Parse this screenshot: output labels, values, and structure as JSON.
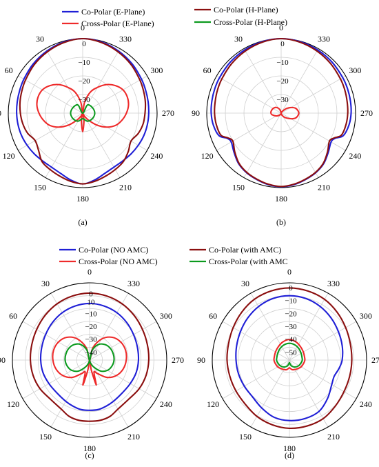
{
  "figure_colors": {
    "co_polar_e": "#1f1fd6",
    "cross_polar_e": "#ee2a2a",
    "co_polar_h": "#8b0f0f",
    "cross_polar_h": "#0b9a1e"
  },
  "legends": [
    {
      "entries": [
        {
          "label": "Co-Polar (E-Plane)",
          "color": "#1f1fd6"
        },
        {
          "label": "Co-Polar (H-Plane)",
          "color": "#8b0f0f"
        },
        {
          "label": "Cross-Polar (E-Plane)",
          "color": "#ee2a2a"
        },
        {
          "label": "Cross-Polar (H-Plane)",
          "color": "#0b9a1e"
        }
      ]
    },
    {
      "entries": [
        {
          "label": "Co-Polar (NO AMC)",
          "color": "#1f1fd6"
        },
        {
          "label": "Co-Polar (with AMC)",
          "color": "#8b0f0f"
        },
        {
          "label": "Cross-Polar (NO AMC)",
          "color": "#ee2a2a"
        },
        {
          "label": "Cross-Polar (with AMC",
          "color": "#0b9a1e"
        }
      ]
    }
  ],
  "chart_data": [
    {
      "type": "polar",
      "caption": "(a)",
      "angle_labels": [
        "0",
        "330",
        "300",
        "270",
        "240",
        "210",
        "180",
        "150",
        "120",
        "90",
        "60",
        "30"
      ],
      "radial_labels": [
        "0",
        "−10",
        "−20",
        "−30"
      ],
      "rlim": [
        -40,
        0
      ],
      "series": [
        {
          "name": "Co-Polar (E-Plane)",
          "color": "#1f1fd6",
          "theta": [
            0,
            15,
            30,
            45,
            60,
            70,
            80,
            90,
            100,
            110,
            120,
            130,
            140,
            150,
            160,
            170,
            180,
            190,
            200,
            210,
            220,
            230,
            240,
            250,
            260,
            270,
            280,
            290,
            300,
            315,
            330,
            345
          ],
          "r_db": [
            0,
            -0.5,
            -1.5,
            -2.5,
            -3.5,
            -4,
            -4.3,
            -4.5,
            -4.7,
            -5,
            -5.5,
            -6,
            -6.5,
            -6.5,
            -5.5,
            -3.5,
            -2,
            -3.5,
            -5.5,
            -6.5,
            -6.5,
            -6,
            -5.5,
            -5,
            -4.7,
            -4.5,
            -4.3,
            -4,
            -3.5,
            -2.5,
            -1.5,
            -0.5
          ]
        },
        {
          "name": "Co-Polar (H-Plane)",
          "color": "#8b0f0f",
          "theta": [
            0,
            15,
            30,
            45,
            60,
            70,
            80,
            90,
            100,
            110,
            120,
            130,
            140,
            150,
            160,
            170,
            180,
            190,
            200,
            210,
            220,
            230,
            240,
            250,
            260,
            270,
            280,
            290,
            300,
            315,
            330,
            345
          ],
          "r_db": [
            0,
            -0.8,
            -2,
            -3.2,
            -4.5,
            -5.2,
            -5.8,
            -6.5,
            -7.3,
            -8.5,
            -10.5,
            -9,
            -6,
            -5,
            -4,
            -2.8,
            -2,
            -2.8,
            -4,
            -5,
            -6,
            -8,
            -10,
            -8.2,
            -7,
            -6.5,
            -5.8,
            -5.2,
            -4.5,
            -3.2,
            -2,
            -0.8
          ]
        },
        {
          "name": "Cross-Polar (E-Plane)",
          "color": "#ee2a2a",
          "theta": [
            0,
            10,
            20,
            30,
            40,
            50,
            60,
            70,
            80,
            90,
            100,
            110,
            120,
            130,
            140,
            150,
            160,
            170,
            180,
            190,
            200,
            210,
            220,
            230,
            240,
            250,
            260,
            270,
            280,
            290,
            300,
            310,
            320,
            330,
            340,
            350
          ],
          "r_db": [
            -40,
            -34,
            -28,
            -24,
            -20,
            -17,
            -15,
            -14.5,
            -15,
            -16.5,
            -18.5,
            -21,
            -25,
            -30,
            -35,
            -38,
            -40,
            -36,
            -30,
            -36,
            -40,
            -38,
            -35,
            -30,
            -25,
            -21,
            -18.5,
            -16.5,
            -15,
            -14.5,
            -15,
            -17,
            -20,
            -24,
            -28,
            -34
          ]
        },
        {
          "name": "Cross-Polar (H-Plane)",
          "color": "#0b9a1e",
          "theta": [
            0,
            30,
            60,
            90,
            120,
            150,
            180,
            210,
            240,
            270,
            300,
            330
          ],
          "r_db": [
            -40,
            -35,
            -34,
            -33.5,
            -34,
            -35,
            -37,
            -35,
            -34,
            -33.5,
            -34,
            -35
          ]
        }
      ]
    },
    {
      "type": "polar",
      "caption": "(b)",
      "angle_labels": [
        "0",
        "330",
        "300",
        "270",
        "240",
        "210",
        "180",
        "150",
        "120",
        "90",
        "60",
        "30"
      ],
      "radial_labels": [
        "0",
        "−10",
        "−20",
        "−30"
      ],
      "rlim": [
        -40,
        0
      ],
      "series": [
        {
          "name": "Co-Polar (E-Plane)",
          "color": "#1f1fd6",
          "theta": [
            0,
            15,
            30,
            45,
            60,
            70,
            80,
            90,
            100,
            110,
            115,
            120,
            130,
            140,
            150,
            160,
            170,
            180,
            190,
            200,
            210,
            220,
            230,
            240,
            245,
            250,
            260,
            270,
            280,
            290,
            300,
            315,
            330,
            345
          ],
          "r_db": [
            0,
            -0.3,
            -0.8,
            -1.3,
            -1.8,
            -2,
            -2.2,
            -2.4,
            -3,
            -4.5,
            -8,
            -9,
            -7,
            -4.5,
            -3,
            -2,
            -1,
            -0.5,
            -1,
            -2,
            -3,
            -4.5,
            -7,
            -9,
            -8,
            -4.5,
            -3,
            -2.4,
            -2.2,
            -2,
            -1.8,
            -1.3,
            -0.8,
            -0.3
          ]
        },
        {
          "name": "Co-Polar (H-Plane)",
          "color": "#8b0f0f",
          "theta": [
            0,
            15,
            30,
            45,
            60,
            70,
            80,
            90,
            100,
            110,
            115,
            120,
            130,
            140,
            150,
            160,
            170,
            180,
            190,
            200,
            210,
            220,
            230,
            240,
            245,
            250,
            260,
            270,
            280,
            290,
            300,
            315,
            330,
            345
          ],
          "r_db": [
            0,
            -0.6,
            -1.5,
            -2.4,
            -3.2,
            -3.6,
            -4,
            -4.2,
            -4.6,
            -5.5,
            -8.5,
            -10,
            -7.5,
            -4.8,
            -3.2,
            -2.2,
            -1.2,
            -0.6,
            -1.2,
            -2.2,
            -3.2,
            -4.8,
            -7.5,
            -10,
            -8.5,
            -5.5,
            -4.6,
            -4.2,
            -4,
            -3.6,
            -3.2,
            -2.4,
            -1.5,
            -0.6
          ]
        },
        {
          "name": "Cross-Polar (E-Plane)",
          "color": "#ee2a2a",
          "theta": [
            0,
            20,
            40,
            60,
            80,
            90,
            100,
            120,
            140,
            160,
            180,
            200,
            220,
            240,
            250,
            260,
            270,
            280,
            290,
            300,
            310,
            320,
            340
          ],
          "r_db": [
            -40,
            -38,
            -36,
            -35,
            -34.5,
            -34.5,
            -35,
            -37,
            -38.5,
            -39.5,
            -40,
            -39,
            -37,
            -34,
            -32,
            -31,
            -30.5,
            -31,
            -32,
            -34,
            -36,
            -38,
            -39.5
          ]
        }
      ]
    },
    {
      "type": "polar",
      "caption": "(c)",
      "angle_labels": [
        "0",
        "330",
        "300",
        "270",
        "240",
        "210",
        "180",
        "150",
        "120",
        "90",
        "60",
        "30"
      ],
      "radial_labels": [
        "0",
        "10",
        "−10",
        "−20",
        "−30",
        "−40"
      ],
      "rlim": [
        -50,
        10
      ],
      "series": [
        {
          "name": "Co-Polar (NO AMC)",
          "color": "#1f1fd6",
          "theta": [
            0,
            15,
            30,
            45,
            60,
            75,
            90,
            105,
            120,
            135,
            150,
            160,
            170,
            180,
            190,
            200,
            210,
            225,
            240,
            255,
            270,
            285,
            300,
            315,
            330,
            345
          ],
          "r_db": [
            -6,
            -6.5,
            -7.5,
            -9,
            -10.5,
            -11.5,
            -12,
            -12.5,
            -13.5,
            -14,
            -13,
            -12,
            -11,
            -11,
            -11,
            -12,
            -13,
            -14,
            -13.5,
            -12.5,
            -12,
            -11.5,
            -10.5,
            -9,
            -7.5,
            -6.5
          ]
        },
        {
          "name": "Co-Polar (with AMC)",
          "color": "#8b0f0f",
          "theta": [
            0,
            15,
            30,
            45,
            60,
            75,
            90,
            105,
            120,
            135,
            150,
            160,
            170,
            180,
            190,
            200,
            210,
            225,
            240,
            255,
            270,
            285,
            300,
            315,
            330,
            345
          ],
          "r_db": [
            2,
            1.5,
            0.5,
            -1,
            -2.5,
            -3.5,
            -4,
            -4.5,
            -5.5,
            -7,
            -6,
            -3.5,
            -2.5,
            -2.5,
            -2.5,
            -3.5,
            -6,
            -7,
            -5.5,
            -4.5,
            -4,
            -3.5,
            -2.5,
            -1,
            0.5,
            1.5
          ]
        },
        {
          "name": "Cross-Polar (NO AMC)",
          "color": "#ee2a2a",
          "theta": [
            0,
            15,
            30,
            45,
            60,
            75,
            90,
            105,
            120,
            135,
            150,
            160,
            165,
            170,
            180,
            190,
            195,
            200,
            210,
            225,
            240,
            255,
            270,
            285,
            300,
            315,
            330,
            345
          ],
          "r_db": [
            -50,
            -40,
            -31,
            -25,
            -22,
            -21,
            -21.5,
            -23,
            -26,
            -31,
            -38,
            -40,
            -30,
            -42,
            -50,
            -42,
            -30,
            -40,
            -38,
            -31,
            -26,
            -23,
            -21.5,
            -21,
            -22,
            -25,
            -31,
            -40
          ]
        },
        {
          "name": "Cross-Polar (with AMC",
          "color": "#0b9a1e",
          "theta": [
            0,
            15,
            30,
            45,
            60,
            75,
            90,
            105,
            120,
            135,
            150,
            165,
            180,
            195,
            210,
            225,
            240,
            255,
            270,
            285,
            300,
            315,
            330,
            345
          ],
          "r_db": [
            -50,
            -42,
            -36,
            -33,
            -31.5,
            -31,
            -31,
            -32,
            -34,
            -38,
            -44,
            -48,
            -50,
            -48,
            -44,
            -38,
            -34,
            -32,
            -31,
            -31,
            -31.5,
            -33,
            -36,
            -42
          ]
        }
      ]
    },
    {
      "type": "polar",
      "caption": "(d)",
      "angle_labels": [
        "0",
        "330",
        "300",
        "270",
        "240",
        "210",
        "180",
        "150",
        "120",
        "90",
        "60",
        "30"
      ],
      "radial_labels": [
        "0",
        "−10",
        "−20",
        "−30",
        "−40",
        "−50"
      ],
      "rlim": [
        -60,
        0
      ],
      "series": [
        {
          "name": "Co-Polar (NO AMC)",
          "color": "#1f1fd6",
          "theta": [
            0,
            15,
            30,
            45,
            60,
            75,
            90,
            105,
            120,
            135,
            150,
            165,
            180,
            195,
            210,
            225,
            240,
            250,
            260,
            270,
            285,
            300,
            315,
            330,
            345
          ],
          "r_db": [
            -10,
            -10.5,
            -12,
            -14,
            -16,
            -17.5,
            -18.5,
            -19,
            -19.5,
            -19.5,
            -17,
            -14,
            -13,
            -13,
            -14,
            -18,
            -22,
            -23,
            -21,
            -19,
            -17.5,
            -16,
            -14,
            -12,
            -10.5
          ]
        },
        {
          "name": "Co-Polar (with AMC)",
          "color": "#8b0f0f",
          "theta": [
            0,
            15,
            30,
            45,
            60,
            75,
            90,
            105,
            120,
            135,
            150,
            165,
            180,
            195,
            210,
            225,
            240,
            255,
            270,
            285,
            300,
            315,
            330,
            345
          ],
          "r_db": [
            -4,
            -4.5,
            -5.5,
            -7.5,
            -9.5,
            -11,
            -11.5,
            -12,
            -12,
            -11.5,
            -9.5,
            -8,
            -7,
            -7,
            -7.5,
            -9.5,
            -11,
            -11.5,
            -11.5,
            -11,
            -9.5,
            -7.5,
            -5.5,
            -4.5
          ]
        },
        {
          "name": "Cross-Polar (NO AMC)",
          "color": "#ee2a2a",
          "theta": [
            0,
            20,
            40,
            60,
            80,
            90,
            100,
            120,
            140,
            160,
            170,
            180,
            190,
            200,
            220,
            240,
            260,
            270,
            280,
            300,
            320,
            340
          ],
          "r_db": [
            -44,
            -45,
            -46.5,
            -47.5,
            -48,
            -48,
            -48.5,
            -49.5,
            -51,
            -52,
            -53,
            -54,
            -53,
            -52,
            -51,
            -49.5,
            -48.5,
            -48,
            -48,
            -47.5,
            -46.5,
            -45
          ]
        },
        {
          "name": "Cross-Polar (with AMC",
          "color": "#0b9a1e",
          "theta": [
            0,
            20,
            40,
            60,
            80,
            90,
            100,
            120,
            140,
            160,
            170,
            180,
            190,
            200,
            220,
            240,
            260,
            270,
            280,
            300,
            320,
            340
          ],
          "r_db": [
            -47,
            -47.5,
            -48.5,
            -49.5,
            -50,
            -50,
            -50.5,
            -51.5,
            -53,
            -55,
            -57,
            -58,
            -57,
            -55,
            -53,
            -51.5,
            -50.5,
            -50,
            -50,
            -49.5,
            -48.5,
            -47.5
          ]
        }
      ]
    }
  ]
}
